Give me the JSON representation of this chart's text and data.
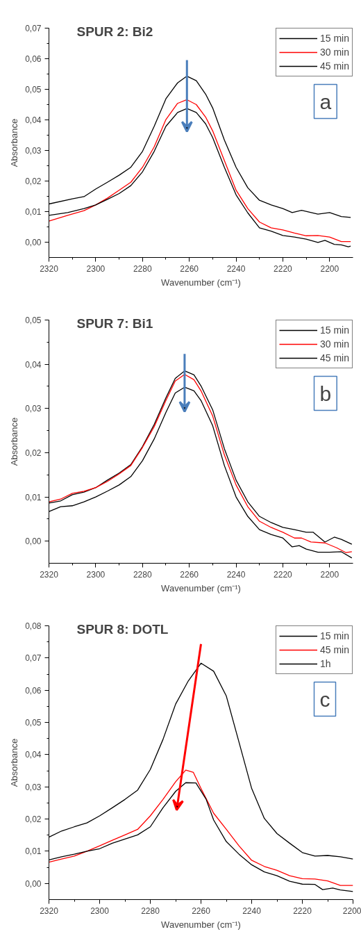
{
  "chart_data": [
    {
      "type": "line",
      "title": "SPUR 2: Bi2",
      "xlabel": "Wavenumber (cm⁻¹)",
      "ylabel": "Absorbance",
      "annotations": [
        "a"
      ],
      "xlim": [
        2320,
        2190
      ],
      "xticks": [
        2320,
        2300,
        2280,
        2260,
        2240,
        2220,
        2200
      ],
      "ylim": [
        -0.005,
        0.07
      ],
      "yticks": [
        {
          "value": 0,
          "label": "0,00"
        },
        {
          "value": 0.01,
          "label": "0,01"
        },
        {
          "value": 0.02,
          "label": "0,02"
        },
        {
          "value": 0.03,
          "label": "0,03"
        },
        {
          "value": 0.04,
          "label": "0,04"
        },
        {
          "value": 0.05,
          "label": "0,05"
        },
        {
          "value": 0.06,
          "label": "0,06"
        },
        {
          "value": 0.07,
          "label": "0,07"
        }
      ],
      "grid": false,
      "legend": "top right",
      "line_style": "solid",
      "series": [
        {
          "name": "15 min",
          "color": "#000000",
          "x": [
            2320,
            2310,
            2305,
            2300,
            2295,
            2290,
            2285,
            2280,
            2275,
            2270,
            2265,
            2261,
            2257,
            2253,
            2250,
            2245,
            2240,
            2235,
            2230,
            2225,
            2220,
            2216,
            2212,
            2205,
            2200,
            2195,
            2191
          ],
          "values": [
            0.0125,
            0.0142,
            0.0149,
            0.0174,
            0.0196,
            0.0219,
            0.0245,
            0.0297,
            0.0379,
            0.0469,
            0.0521,
            0.0543,
            0.0528,
            0.0484,
            0.0439,
            0.0334,
            0.0245,
            0.0178,
            0.0137,
            0.0122,
            0.011,
            0.0097,
            0.0104,
            0.0092,
            0.0097,
            0.0084,
            0.0081
          ]
        },
        {
          "name": "30 min",
          "color": "#ff0000",
          "x": [
            2320,
            2312,
            2305,
            2300,
            2295,
            2290,
            2285,
            2280,
            2275,
            2270,
            2265,
            2261,
            2257,
            2253,
            2250,
            2245,
            2240,
            2235,
            2230,
            2225,
            2220,
            2215,
            2210,
            2205,
            2200,
            2195,
            2191
          ],
          "values": [
            0.0069,
            0.0088,
            0.0103,
            0.0122,
            0.0144,
            0.017,
            0.0196,
            0.0245,
            0.0312,
            0.0401,
            0.0454,
            0.0466,
            0.045,
            0.0409,
            0.0364,
            0.0267,
            0.017,
            0.011,
            0.0066,
            0.0047,
            0.004,
            0.003,
            0.0021,
            0.0022,
            0.0017,
            0.0002,
            0.0002
          ]
        },
        {
          "name": "45 min",
          "color": "#000000",
          "x": [
            2320,
            2312,
            2305,
            2300,
            2295,
            2290,
            2285,
            2280,
            2275,
            2270,
            2265,
            2261,
            2257,
            2253,
            2250,
            2245,
            2240,
            2235,
            2230,
            2225,
            2220,
            2215,
            2210,
            2205,
            2202,
            2198,
            2195,
            2192,
            2191
          ],
          "values": [
            0.0088,
            0.0097,
            0.011,
            0.0122,
            0.014,
            0.0159,
            0.0185,
            0.023,
            0.0297,
            0.0379,
            0.0424,
            0.0437,
            0.0424,
            0.0387,
            0.0342,
            0.0245,
            0.0155,
            0.0096,
            0.0047,
            0.0036,
            0.0022,
            0.0017,
            0.001,
            -0.0001,
            0.0006,
            -0.0007,
            -0.0009,
            -0.0015,
            -0.0013
          ]
        }
      ]
    },
    {
      "type": "line",
      "title": "SPUR 7: Bi1",
      "xlabel": "Wavenumber (cm⁻¹)",
      "ylabel": "Absorbance",
      "annotations": [
        "b"
      ],
      "xlim": [
        2320,
        2190
      ],
      "xticks": [
        2320,
        2300,
        2280,
        2260,
        2240,
        2220,
        2200
      ],
      "ylim": [
        -0.005,
        0.05
      ],
      "yticks": [
        {
          "value": 0,
          "label": "0,00"
        },
        {
          "value": 0.01,
          "label": "0,01"
        },
        {
          "value": 0.02,
          "label": "0,02"
        },
        {
          "value": 0.03,
          "label": "0,03"
        },
        {
          "value": 0.04,
          "label": "0,04"
        },
        {
          "value": 0.05,
          "label": "0,05"
        }
      ],
      "grid": false,
      "legend": "top right",
      "line_style": "solid",
      "series": [
        {
          "name": "15 min",
          "color": "#000000",
          "x": [
            2320,
            2315,
            2310,
            2305,
            2300,
            2295,
            2290,
            2285,
            2280,
            2275,
            2270,
            2266,
            2262,
            2258,
            2255,
            2250,
            2245,
            2240,
            2235,
            2230,
            2225,
            2220,
            2215,
            2210,
            2207,
            2202,
            2198,
            2195,
            2190.5
          ],
          "values": [
            0.0086,
            0.0091,
            0.0105,
            0.0111,
            0.0121,
            0.0138,
            0.0154,
            0.0173,
            0.0214,
            0.0264,
            0.0324,
            0.0368,
            0.0385,
            0.0376,
            0.0351,
            0.0297,
            0.0209,
            0.0138,
            0.0089,
            0.0056,
            0.0042,
            0.0031,
            0.0026,
            0.002,
            0.002,
            -0.0002,
            0.0009,
            0.0004,
            -0.0007
          ]
        },
        {
          "name": "30 min",
          "color": "#ff0000",
          "x": [
            2320,
            2315,
            2310,
            2305,
            2300,
            2295,
            2290,
            2285,
            2280,
            2275,
            2270,
            2266,
            2262,
            2258,
            2255,
            2250,
            2245,
            2240,
            2235,
            2230,
            2225,
            2220,
            2215,
            2212,
            2208,
            2202,
            2197,
            2193,
            2190.5
          ],
          "values": [
            0.0089,
            0.0095,
            0.0108,
            0.0113,
            0.0121,
            0.0135,
            0.0152,
            0.0171,
            0.0212,
            0.0259,
            0.0318,
            0.0362,
            0.0377,
            0.0365,
            0.034,
            0.0283,
            0.0195,
            0.0127,
            0.0078,
            0.0045,
            0.0031,
            0.002,
            0.0007,
            0.0007,
            -0.0002,
            -0.0004,
            -0.0015,
            -0.0026,
            -0.0024
          ]
        },
        {
          "name": "45 min",
          "color": "#000000",
          "x": [
            2320,
            2315,
            2310,
            2305,
            2300,
            2295,
            2290,
            2285,
            2280,
            2275,
            2270,
            2266,
            2262,
            2258,
            2255,
            2250,
            2245,
            2240,
            2235,
            2230,
            2225,
            2220,
            2216,
            2213,
            2210,
            2205,
            2200,
            2195,
            2190.5
          ],
          "values": [
            0.0067,
            0.0078,
            0.008,
            0.0089,
            0.01,
            0.0113,
            0.0127,
            0.0146,
            0.0182,
            0.0231,
            0.0291,
            0.0335,
            0.0348,
            0.034,
            0.0318,
            0.0261,
            0.0171,
            0.01,
            0.0056,
            0.0026,
            0.0015,
            0.0007,
            -0.0013,
            -0.001,
            -0.0018,
            -0.0025,
            -0.0025,
            -0.0024,
            -0.0038
          ]
        }
      ]
    },
    {
      "type": "line",
      "title": "SPUR 8: DOTL",
      "xlabel": "Wavenumber (cm⁻¹)",
      "ylabel": "Absorbance",
      "annotations": [
        "c"
      ],
      "xlim": [
        2320,
        2200
      ],
      "xticks": [
        2320,
        2300,
        2280,
        2260,
        2240,
        2220,
        2200
      ],
      "ylim": [
        -0.005,
        0.08
      ],
      "yticks": [
        {
          "value": 0,
          "label": "0,00"
        },
        {
          "value": 0.01,
          "label": "0,01"
        },
        {
          "value": 0.02,
          "label": "0,02"
        },
        {
          "value": 0.03,
          "label": "0,03"
        },
        {
          "value": 0.04,
          "label": "0,04"
        },
        {
          "value": 0.05,
          "label": "0,05"
        },
        {
          "value": 0.06,
          "label": "0,06"
        },
        {
          "value": 0.07,
          "label": "0,07"
        },
        {
          "value": 0.08,
          "label": "0,08"
        }
      ],
      "grid": false,
      "legend": "top right",
      "line_style": "solid",
      "series": [
        {
          "name": "15 min",
          "color": "#000000",
          "x": [
            2320,
            2315,
            2310,
            2305,
            2300,
            2295,
            2290,
            2285,
            2280,
            2275,
            2270,
            2265,
            2260,
            2255,
            2250,
            2245,
            2240,
            2235,
            2230,
            2225,
            2220,
            2215,
            2210,
            2205,
            2200
          ],
          "values": [
            0.0144,
            0.0163,
            0.0176,
            0.0188,
            0.021,
            0.0235,
            0.0261,
            0.029,
            0.0354,
            0.0447,
            0.0557,
            0.0629,
            0.0684,
            0.0659,
            0.0582,
            0.0439,
            0.0295,
            0.0202,
            0.0155,
            0.0125,
            0.0096,
            0.0085,
            0.0087,
            0.0083,
            0.0076
          ]
        },
        {
          "name": "45 min",
          "color": "#ff0000",
          "x": [
            2320,
            2315,
            2310,
            2305,
            2300,
            2295,
            2290,
            2285,
            2280,
            2275,
            2270,
            2266,
            2263,
            2260,
            2255,
            2250,
            2245,
            2240,
            2235,
            2230,
            2225,
            2220,
            2215,
            2210,
            2205,
            2200
          ],
          "values": [
            0.0066,
            0.0076,
            0.0085,
            0.01,
            0.0117,
            0.0134,
            0.0151,
            0.0168,
            0.021,
            0.0261,
            0.0316,
            0.0352,
            0.0345,
            0.0295,
            0.0218,
            0.0168,
            0.0117,
            0.0072,
            0.0053,
            0.0041,
            0.0024,
            0.0015,
            0.0014,
            0.0008,
            -0.0006,
            -0.0006
          ]
        },
        {
          "name": "1h",
          "color": "#000000",
          "x": [
            2320,
            2315,
            2310,
            2305,
            2300,
            2295,
            2290,
            2285,
            2280,
            2275,
            2270,
            2266,
            2262,
            2258,
            2255,
            2250,
            2245,
            2240,
            2235,
            2230,
            2225,
            2220,
            2215,
            2212,
            2208,
            2205,
            2200
          ],
          "values": [
            0.0073,
            0.0083,
            0.0091,
            0.01,
            0.0108,
            0.0125,
            0.0138,
            0.0151,
            0.0176,
            0.0235,
            0.0286,
            0.0313,
            0.0312,
            0.0262,
            0.0197,
            0.013,
            0.0091,
            0.0058,
            0.0036,
            0.0024,
            0.0007,
            -0.0002,
            -0.0003,
            -0.0019,
            -0.0014,
            -0.002,
            -0.0025
          ]
        }
      ]
    }
  ]
}
